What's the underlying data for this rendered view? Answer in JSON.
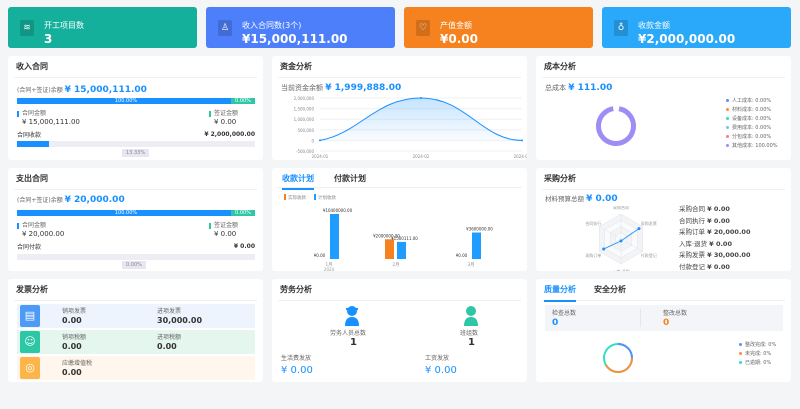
{
  "kpis": [
    {
      "label": "开工项目数",
      "value": "3",
      "icon": "layers-icon",
      "color": "#14b09c"
    },
    {
      "label": "收入合同数(3个)",
      "value": "¥15,000,111.00",
      "icon": "stamp-icon",
      "color": "#4d7ffb"
    },
    {
      "label": "产值金额",
      "value": "¥0.00",
      "icon": "heart-shield-icon",
      "color": "#f5821f"
    },
    {
      "label": "收款金额",
      "value": "¥2,000,000.00",
      "icon": "money-bag-icon",
      "color": "#2aa8f9"
    }
  ],
  "income": {
    "title": "收入合同",
    "balance_label": "(合同+签证)余额",
    "balance": "¥ 15,000,111.00",
    "contract_pct": "100.00%",
    "visa_pct": "0.00%",
    "contract_label": "合同金额",
    "contract_value": "¥ 15,000,111.00",
    "visa_label": "签证金额",
    "visa_value": "¥ 0.00",
    "collect_label": "合同收款",
    "collect_value": "¥ 2,000,000.00",
    "collect_pct": "13.33%",
    "collect_fraction": 0.1333
  },
  "expense": {
    "title": "支出合同",
    "balance_label": "(合同+签证)余额",
    "balance": "¥ 20,000.00",
    "contract_pct": "100.00%",
    "visa_pct": "0.00%",
    "contract_label": "合同金额",
    "contract_value": "¥ 20,000.00",
    "visa_label": "签证金额",
    "visa_value": "¥ 0.00",
    "pay_label": "合同付款",
    "pay_value": "¥ 0.00",
    "pay_pct": "0.00%",
    "pay_fraction": 0
  },
  "funds": {
    "title": "资金分析",
    "balance_label": "当前资金余额",
    "balance": "¥ 1,999,888.00"
  },
  "cost": {
    "title": "成本分析",
    "total_label": "总成本",
    "total": "¥ 111.00",
    "legend": [
      {
        "label": "人工成本: 0.00%",
        "color": "#5b8ff9"
      },
      {
        "label": "材料成本: 0.00%",
        "color": "#f6903d"
      },
      {
        "label": "设备成本: 0.00%",
        "color": "#2ee0c4"
      },
      {
        "label": "费用成本: 0.00%",
        "color": "#6dc8ec"
      },
      {
        "label": "分包成本: 0.00%",
        "color": "#ff7c7c"
      },
      {
        "label": "其他成本: 100.00%",
        "color": "#9d8ef5"
      }
    ]
  },
  "plan": {
    "tabs": [
      "收款计划",
      "付款计划"
    ],
    "active_tab": 0
  },
  "purchase": {
    "title": "采购分析",
    "budget_label": "材料预算总额",
    "budget": "¥ 0.00",
    "radar_axes": [
      "采购合同",
      "采购发票",
      "付款登记",
      "入库·退货",
      "采购订单",
      "合同执行"
    ],
    "items": [
      {
        "label": "采购合同",
        "value": "¥ 0.00"
      },
      {
        "label": "合同执行",
        "value": "¥ 0.00"
      },
      {
        "label": "采购订单",
        "value": "¥ 20,000.00"
      },
      {
        "label": "入库·退货",
        "value": "¥ 0.00"
      },
      {
        "label": "采购发票",
        "value": "¥ 30,000.00"
      },
      {
        "label": "付款登记",
        "value": "¥ 0.00"
      }
    ]
  },
  "invoice": {
    "title": "发票分析",
    "rows": [
      {
        "icon": "invoice-printer-icon",
        "color": "#4e9bf6",
        "bg": "#eef4fd",
        "a_label": "销项发票",
        "a_value": "0.00",
        "b_label": "进项发票",
        "b_value": "30,000.00"
      },
      {
        "icon": "hand-coin-icon",
        "color": "#2ec7a5",
        "bg": "#e5f6ef",
        "a_label": "销项税额",
        "a_value": "0.00",
        "b_label": "进项税额",
        "b_value": "0.00"
      },
      {
        "icon": "tax-stamp-icon",
        "color": "#fbb54a",
        "bg": "#fff7ed",
        "a_label": "应缴增值税",
        "a_value": "0.00"
      }
    ]
  },
  "labor": {
    "title": "劳务分析",
    "workers_label": "劳务人员总数",
    "workers": "1",
    "teams_label": "班组数",
    "teams": "1",
    "living_label": "生活费发放",
    "living": "¥ 0.00",
    "wage_label": "工资发放",
    "wage": "¥ 0.00"
  },
  "quality": {
    "tabs": [
      "质量分析",
      "安全分析"
    ],
    "inspect_label": "检查总数",
    "inspect": "0",
    "rectify_label": "整改总数",
    "rectify": "0",
    "legend": [
      {
        "label": "整改完成: 0%",
        "color": "#5b8ff9"
      },
      {
        "label": "未完成: 0%",
        "color": "#f6903d"
      },
      {
        "label": "已逾期: 0%",
        "color": "#2ee0c4"
      }
    ]
  },
  "chart_data": [
    {
      "type": "area",
      "x": [
        "2024-01",
        "2024-02",
        "2024-03"
      ],
      "values": [
        0,
        2000000,
        0
      ],
      "yticks": [
        "2,000,000",
        "1,500,000",
        "1,000,000",
        "500,000",
        "0",
        "-500,000"
      ],
      "ylim": [
        -500000,
        2000000
      ],
      "color": "#1890ff",
      "grid": true
    },
    {
      "type": "bar",
      "categories": [
        "1月",
        "2月",
        "3月"
      ],
      "x_sublabel": "2024",
      "series": [
        {
          "name": "实际收款",
          "color": "#f5821f",
          "values": [
            0,
            2000000,
            0
          ],
          "labels": [
            "¥0.00",
            "¥2000000.00",
            "¥0.00"
          ]
        },
        {
          "name": "计划收款",
          "color": "#1f9cff",
          "values": [
            10400000,
            1500111,
            3600000
          ],
          "labels": [
            "¥10400000.00",
            "¥1500111.00",
            "¥3600000.00"
          ]
        }
      ],
      "legend": "top-left"
    },
    {
      "type": "pie",
      "title": "",
      "values": [
        0,
        0,
        0,
        0,
        0,
        100
      ],
      "color": "#9d8ef5"
    }
  ]
}
